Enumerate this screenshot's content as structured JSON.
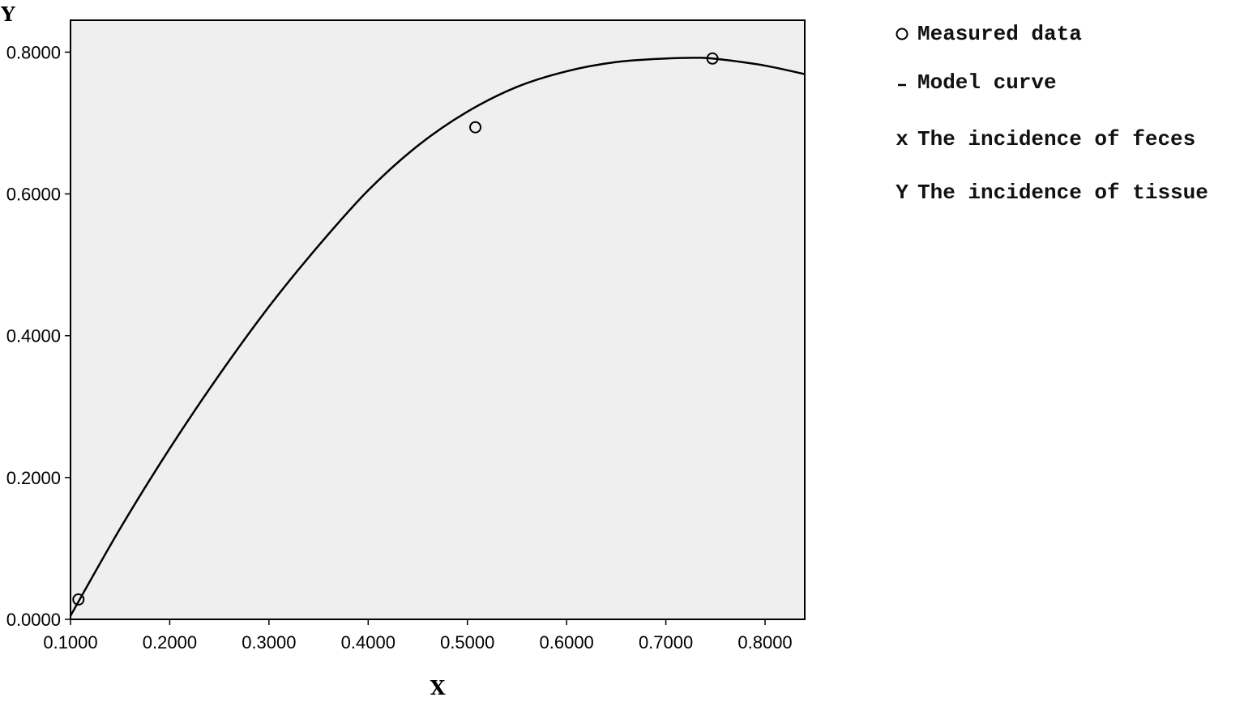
{
  "chart_data": {
    "type": "scatter",
    "xlabel": "X",
    "ylabel": "Y",
    "xlim": [
      0.1,
      0.84
    ],
    "ylim": [
      0.0,
      0.845
    ],
    "x_ticks": [
      "0.1000",
      "0.2000",
      "0.3000",
      "0.4000",
      "0.5000",
      "0.6000",
      "0.7000",
      "0.8000"
    ],
    "y_ticks": [
      "0.0000",
      "0.2000",
      "0.4000",
      "0.6000",
      "0.8000"
    ],
    "grid": false,
    "background": "#efefef",
    "legend_position": "right",
    "series": [
      {
        "name": "Measured data",
        "kind": "points",
        "marker": "circle",
        "x": [
          0.108,
          0.508,
          0.747
        ],
        "y": [
          0.028,
          0.694,
          0.791
        ]
      },
      {
        "name": "Model curve",
        "kind": "line",
        "x": [
          0.1,
          0.15,
          0.2,
          0.25,
          0.3,
          0.35,
          0.4,
          0.45,
          0.5,
          0.55,
          0.6,
          0.65,
          0.7,
          0.735,
          0.76,
          0.8,
          0.84
        ],
        "y": [
          0.005,
          0.128,
          0.241,
          0.345,
          0.441,
          0.527,
          0.605,
          0.668,
          0.716,
          0.751,
          0.773,
          0.786,
          0.791,
          0.792,
          0.789,
          0.781,
          0.769
        ]
      }
    ],
    "legend": [
      {
        "symbol": "circle",
        "label": "Measured data"
      },
      {
        "symbol": "dash",
        "label": "Model curve"
      },
      {
        "symbol": "text",
        "glyph": "x",
        "label": "The incidence of feces"
      },
      {
        "symbol": "text",
        "glyph": "Y",
        "label": "The incidence of tissue"
      }
    ]
  }
}
